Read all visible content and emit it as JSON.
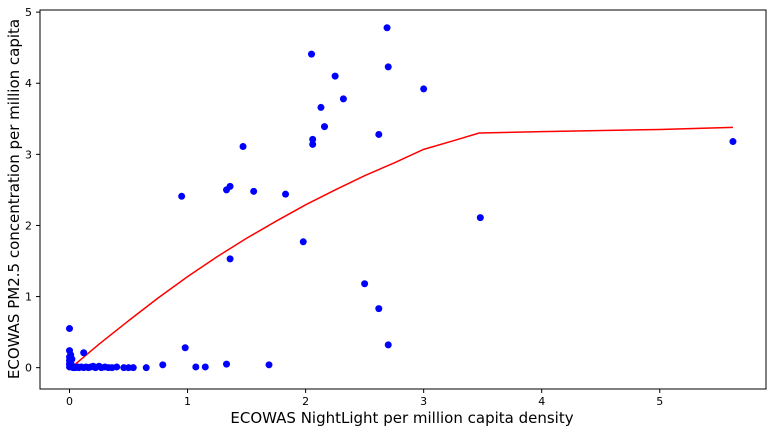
{
  "chart_data": {
    "type": "scatter",
    "title": "",
    "xlabel": "ECOWAS NightLight per million capita density",
    "ylabel": "ECOWAS PM2.5 concentration per million capita",
    "xlim": [
      -0.25,
      5.9
    ],
    "ylim": [
      -0.3,
      5.03
    ],
    "xticks": [
      0,
      1,
      2,
      3,
      4,
      5
    ],
    "yticks": [
      0,
      1,
      2,
      3,
      4,
      5
    ],
    "grid": false,
    "colors": {
      "points": "#0000ff",
      "fit_line": "#ff0000",
      "axes": "#000000"
    },
    "series": [
      {
        "kind": "scatter",
        "points": [
          [
            0.0,
            0.55
          ],
          [
            0.0,
            0.24
          ],
          [
            0.01,
            0.18
          ],
          [
            0.0,
            0.15
          ],
          [
            0.02,
            0.12
          ],
          [
            0.0,
            0.1
          ],
          [
            0.01,
            0.07
          ],
          [
            0.0,
            0.05
          ],
          [
            0.02,
            0.03
          ],
          [
            0.0,
            0.01
          ],
          [
            0.03,
            0.0
          ],
          [
            0.05,
            0.0
          ],
          [
            0.07,
            0.01
          ],
          [
            0.08,
            0.0
          ],
          [
            0.1,
            0.01
          ],
          [
            0.12,
            0.0
          ],
          [
            0.12,
            0.21
          ],
          [
            0.14,
            0.01
          ],
          [
            0.16,
            0.0
          ],
          [
            0.18,
            0.01
          ],
          [
            0.2,
            0.02
          ],
          [
            0.22,
            0.0
          ],
          [
            0.25,
            0.02
          ],
          [
            0.27,
            0.0
          ],
          [
            0.3,
            0.01
          ],
          [
            0.33,
            0.0
          ],
          [
            0.36,
            0.0
          ],
          [
            0.4,
            0.01
          ],
          [
            0.46,
            0.0
          ],
          [
            0.5,
            0.0
          ],
          [
            0.54,
            0.0
          ],
          [
            0.65,
            0.0
          ],
          [
            0.79,
            0.04
          ],
          [
            0.95,
            2.41
          ],
          [
            0.98,
            0.28
          ],
          [
            1.07,
            0.01
          ],
          [
            1.15,
            0.01
          ],
          [
            1.33,
            0.05
          ],
          [
            1.33,
            2.5
          ],
          [
            1.36,
            2.55
          ],
          [
            1.36,
            1.53
          ],
          [
            1.47,
            3.11
          ],
          [
            1.56,
            2.48
          ],
          [
            1.69,
            0.04
          ],
          [
            1.83,
            2.44
          ],
          [
            1.98,
            1.77
          ],
          [
            2.05,
            4.41
          ],
          [
            2.06,
            3.21
          ],
          [
            2.06,
            3.14
          ],
          [
            2.13,
            3.66
          ],
          [
            2.16,
            3.39
          ],
          [
            2.25,
            4.1
          ],
          [
            2.32,
            3.78
          ],
          [
            2.5,
            1.18
          ],
          [
            2.62,
            3.28
          ],
          [
            2.62,
            0.83
          ],
          [
            2.69,
            4.78
          ],
          [
            2.7,
            4.23
          ],
          [
            2.7,
            0.32
          ],
          [
            3.0,
            3.92
          ],
          [
            3.48,
            2.11
          ],
          [
            5.62,
            3.18
          ]
        ]
      },
      {
        "kind": "line",
        "points": [
          [
            0.0,
            -0.02
          ],
          [
            0.25,
            0.33
          ],
          [
            0.5,
            0.66
          ],
          [
            0.75,
            0.98
          ],
          [
            1.0,
            1.28
          ],
          [
            1.25,
            1.56
          ],
          [
            1.5,
            1.82
          ],
          [
            1.75,
            2.06
          ],
          [
            2.0,
            2.29
          ],
          [
            2.25,
            2.5
          ],
          [
            2.5,
            2.7
          ],
          [
            2.75,
            2.88
          ],
          [
            3.0,
            3.07
          ],
          [
            3.25,
            3.19
          ],
          [
            3.47,
            3.3
          ],
          [
            4.0,
            3.32
          ],
          [
            5.0,
            3.35
          ],
          [
            5.62,
            3.38
          ]
        ]
      }
    ]
  }
}
